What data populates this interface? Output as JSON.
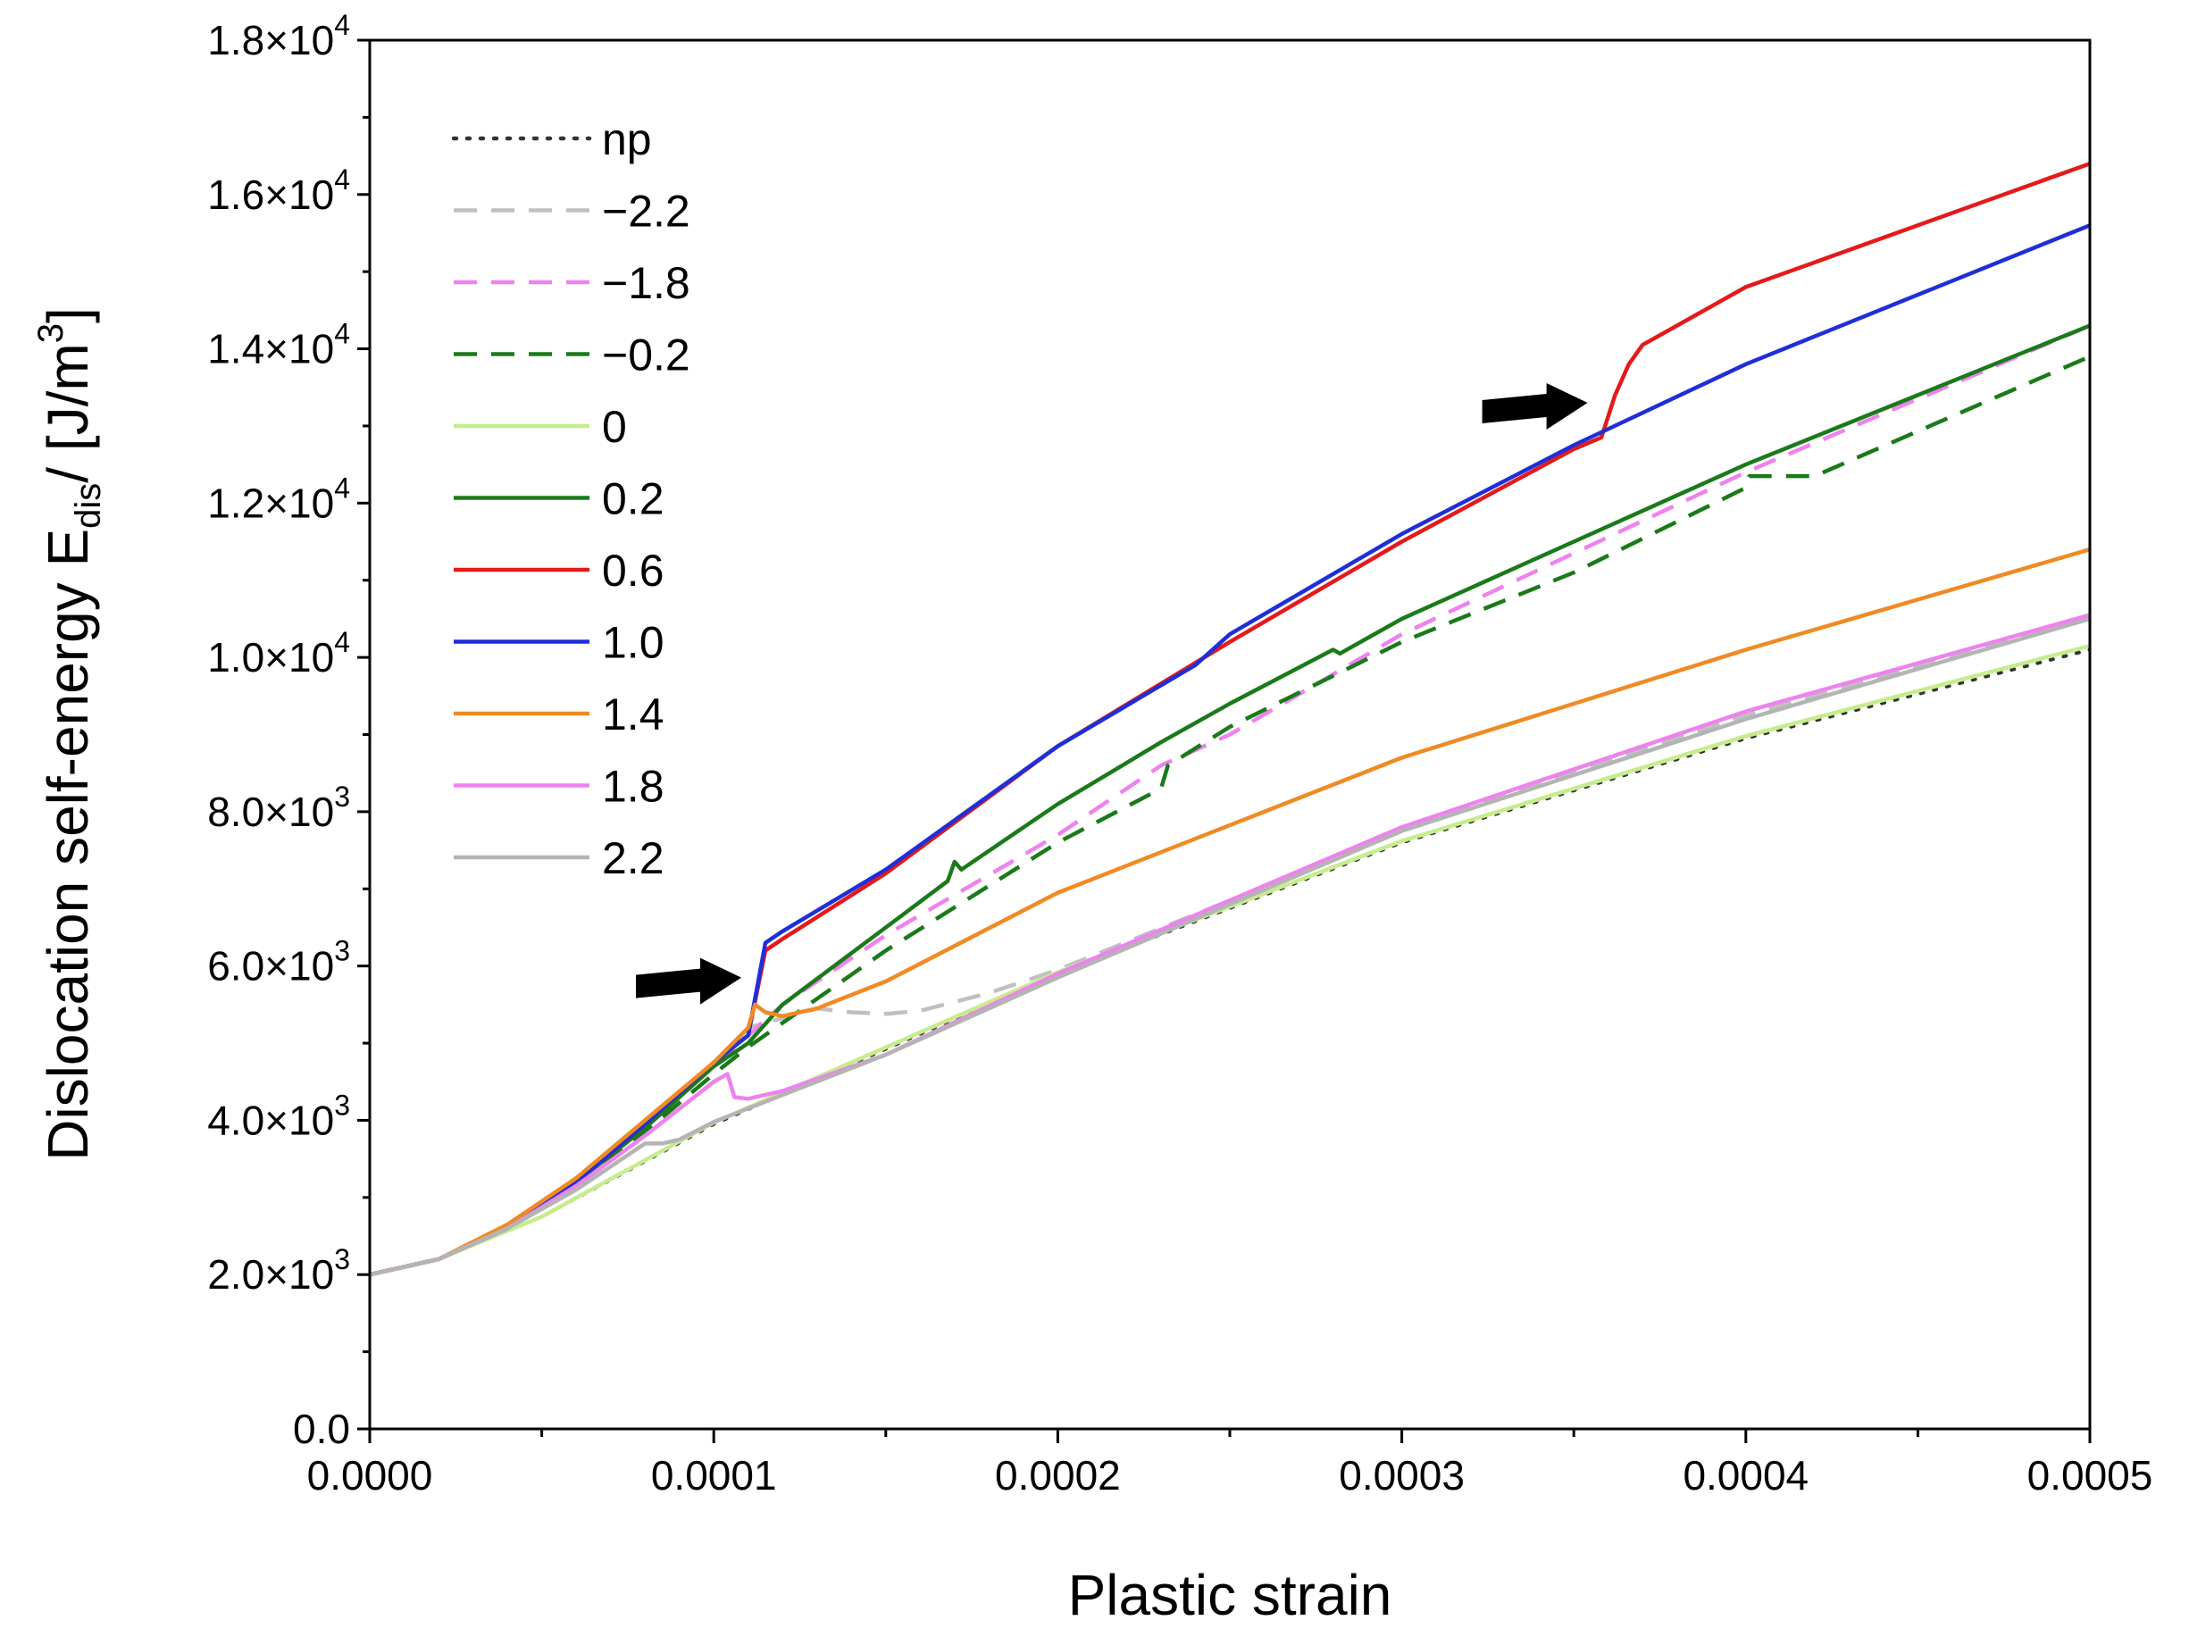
{
  "chart_data": {
    "type": "line",
    "xlabel": "Plastic strain",
    "ylabel_main": "Dislocation self-energy E",
    "ylabel_sub": "dis",
    "ylabel_unit": "/ [J/m",
    "ylabel_sup": "3",
    "ylabel_end": "]",
    "xlim": [
      0,
      0.0005
    ],
    "ylim": [
      0,
      18000
    ],
    "xticks": [
      0,
      0.0001,
      0.0002,
      0.0003,
      0.0004,
      0.0005
    ],
    "xtick_labels": [
      "0.0000",
      "0.0001",
      "0.0002",
      "0.0003",
      "0.0004",
      "0.0005"
    ],
    "yticks": [
      0,
      2000,
      4000,
      6000,
      8000,
      10000,
      12000,
      14000,
      16000,
      18000
    ],
    "ytick_labels": [
      {
        "mant": "0.0",
        "exp": ""
      },
      {
        "mant": "2.0×10",
        "exp": "3"
      },
      {
        "mant": "4.0×10",
        "exp": "3"
      },
      {
        "mant": "6.0×10",
        "exp": "3"
      },
      {
        "mant": "8.0×10",
        "exp": "3"
      },
      {
        "mant": "1.0×10",
        "exp": "4"
      },
      {
        "mant": "1.2×10",
        "exp": "4"
      },
      {
        "mant": "1.4×10",
        "exp": "4"
      },
      {
        "mant": "1.6×10",
        "exp": "4"
      },
      {
        "mant": "1.8×10",
        "exp": "4"
      }
    ],
    "legend_position": "top-left",
    "series": [
      {
        "name": "np",
        "color": "#333333",
        "style": "dotted",
        "x": [
          0,
          2e-05,
          5e-05,
          0.0001,
          0.0002,
          0.0003,
          0.0004,
          0.0005
        ],
        "y": [
          2000,
          2200,
          2750,
          3950,
          5900,
          7600,
          8950,
          10100
        ]
      },
      {
        "name": "−2.2",
        "color": "#c0c0c0",
        "style": "dashed",
        "x": [
          0,
          2e-05,
          4e-05,
          6e-05,
          8e-05,
          0.0001,
          0.00011,
          0.00013,
          0.00014,
          0.00015,
          0.00016,
          0.00018,
          0.0002,
          0.0003,
          0.0004,
          0.0005
        ],
        "y": [
          2000,
          2200,
          2600,
          3100,
          3900,
          4700,
          5200,
          5450,
          5400,
          5380,
          5420,
          5650,
          5950,
          7750,
          9250,
          10500
        ]
      },
      {
        "name": "−1.8",
        "color": "#ee82ee",
        "style": "dashed",
        "x": [
          0,
          2e-05,
          4e-05,
          6e-05,
          8e-05,
          0.0001,
          0.00011,
          0.00012,
          0.00015,
          0.0002,
          0.00023,
          0.00025,
          0.0003,
          0.0004,
          0.0005
        ],
        "y": [
          2000,
          2200,
          2600,
          3200,
          3900,
          4700,
          5100,
          5500,
          6400,
          7700,
          8600,
          9000,
          10300,
          12400,
          14300
        ]
      },
      {
        "name": "−0.2",
        "color": "#1a7a1a",
        "style": "dashed",
        "x": [
          0,
          2e-05,
          4e-05,
          6e-05,
          8e-05,
          0.0001,
          0.00011,
          0.00015,
          0.0002,
          0.00023,
          0.000232,
          0.00025,
          0.0003,
          0.00035,
          0.0004,
          0.000401,
          0.00042,
          0.0005
        ],
        "y": [
          2000,
          2200,
          2600,
          3150,
          3850,
          4600,
          4950,
          6200,
          7600,
          8300,
          8600,
          9100,
          10200,
          11100,
          12200,
          12350,
          12350,
          13900
        ]
      },
      {
        "name": "0",
        "color": "#c6ec8e",
        "style": "solid",
        "x": [
          0,
          2e-05,
          5e-05,
          0.0001,
          0.0002,
          0.0003,
          0.0004,
          0.0005
        ],
        "y": [
          2000,
          2200,
          2750,
          3970,
          5920,
          7620,
          8980,
          10150
        ]
      },
      {
        "name": "0.2",
        "color": "#1a7a1a",
        "style": "solid",
        "x": [
          0,
          2e-05,
          4e-05,
          6e-05,
          8e-05,
          0.0001,
          0.00011,
          0.00012,
          0.00015,
          0.000168,
          0.00017,
          0.000172,
          0.0002,
          0.00023,
          0.00025,
          0.00028,
          0.000282,
          0.0003,
          0.00035,
          0.0004,
          0.0005
        ],
        "y": [
          2000,
          2200,
          2600,
          3200,
          3900,
          4700,
          5000,
          5500,
          6500,
          7100,
          7350,
          7250,
          8100,
          8900,
          9400,
          10100,
          10050,
          10500,
          11500,
          12500,
          14300
        ]
      },
      {
        "name": "0.6",
        "color": "#e31a1c",
        "style": "solid",
        "x": [
          0,
          2e-05,
          4e-05,
          6e-05,
          8e-05,
          0.0001,
          0.00011,
          0.000115,
          0.00012,
          0.00015,
          0.0002,
          0.00025,
          0.0003,
          0.00035,
          0.000358,
          0.000362,
          0.000366,
          0.00037,
          0.0004,
          0.0005
        ],
        "y": [
          2000,
          2200,
          2600,
          3200,
          3950,
          4750,
          5100,
          6200,
          6350,
          7200,
          8850,
          10200,
          11500,
          12700,
          12850,
          13400,
          13800,
          14050,
          14800,
          16400
        ]
      },
      {
        "name": "1.0",
        "color": "#1f2fd6",
        "style": "solid",
        "x": [
          0,
          2e-05,
          4e-05,
          6e-05,
          8e-05,
          0.0001,
          0.00011,
          0.000115,
          0.00012,
          0.00015,
          0.0002,
          0.00024,
          0.00025,
          0.0003,
          0.00035,
          0.0004,
          0.0005
        ],
        "y": [
          2000,
          2200,
          2600,
          3200,
          3950,
          4750,
          5100,
          6300,
          6450,
          7250,
          8850,
          9900,
          10300,
          11600,
          12750,
          13800,
          15600
        ]
      },
      {
        "name": "1.4",
        "color": "#f08a24",
        "style": "solid",
        "x": [
          0,
          2e-05,
          4e-05,
          6e-05,
          8e-05,
          0.0001,
          0.00011,
          0.000112,
          0.000115,
          0.00012,
          0.00013,
          0.00015,
          0.0002,
          0.0003,
          0.0004,
          0.0005
        ],
        "y": [
          2000,
          2200,
          2650,
          3250,
          4000,
          4750,
          5200,
          5500,
          5400,
          5350,
          5450,
          5800,
          6950,
          8700,
          10100,
          11400
        ]
      },
      {
        "name": "1.8",
        "color": "#ee82ee",
        "style": "solid",
        "x": [
          0,
          2e-05,
          4e-05,
          6e-05,
          8e-05,
          0.0001,
          0.000104,
          0.000106,
          0.00011,
          0.00012,
          0.00015,
          0.0002,
          0.0003,
          0.0004,
          0.0005
        ],
        "y": [
          2000,
          2200,
          2600,
          3150,
          3800,
          4500,
          4600,
          4300,
          4280,
          4380,
          4850,
          5900,
          7800,
          9300,
          10550
        ]
      },
      {
        "name": "2.2",
        "color": "#b4b4b4",
        "style": "solid",
        "x": [
          0,
          2e-05,
          4e-05,
          6e-05,
          8e-05,
          8.5e-05,
          9e-05,
          0.0001,
          0.00015,
          0.0002,
          0.0003,
          0.0004,
          0.0005
        ],
        "y": [
          2000,
          2200,
          2600,
          3100,
          3700,
          3700,
          3750,
          3980,
          4850,
          5850,
          7750,
          9200,
          10500
        ]
      }
    ],
    "annotations": [
      {
        "type": "arrow",
        "points_to": {
          "x": 0.000108,
          "y": 5850
        },
        "direction": "right"
      },
      {
        "type": "arrow",
        "points_to": {
          "x": 0.000354,
          "y": 13300
        },
        "direction": "right"
      }
    ]
  }
}
